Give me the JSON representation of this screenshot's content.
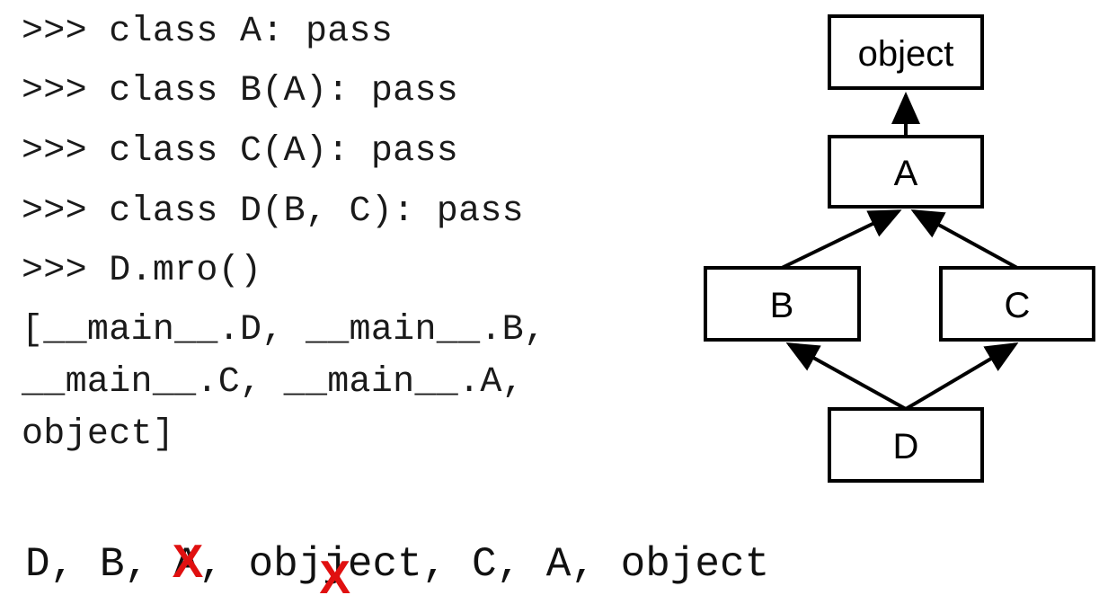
{
  "code": {
    "lines": [
      ">>> class A: pass",
      ">>> class B(A): pass",
      ">>> class C(A): pass",
      ">>> class D(B, C): pass",
      ">>> D.mro()",
      "[__main__.D, __main__.B,",
      "__main__.C, __main__.A,",
      "object]"
    ]
  },
  "diagram": {
    "nodes": {
      "object": "object",
      "A": "A",
      "B": "B",
      "C": "C",
      "D": "D"
    },
    "edges": [
      [
        "A",
        "object"
      ],
      [
        "B",
        "A"
      ],
      [
        "C",
        "A"
      ],
      [
        "D",
        "B"
      ],
      [
        "D",
        "C"
      ]
    ]
  },
  "mro_trace": {
    "d": "D,",
    "b": "B,",
    "a1": "A,",
    "obj1_pre": "obj",
    "obj1_j": "j",
    "obj1_post": "ect,",
    "c": "C,",
    "a2": "A,",
    "obj2": "object",
    "strike_mark_1": "X",
    "strike_mark_2": "X",
    "strike_color": "#e01010"
  }
}
